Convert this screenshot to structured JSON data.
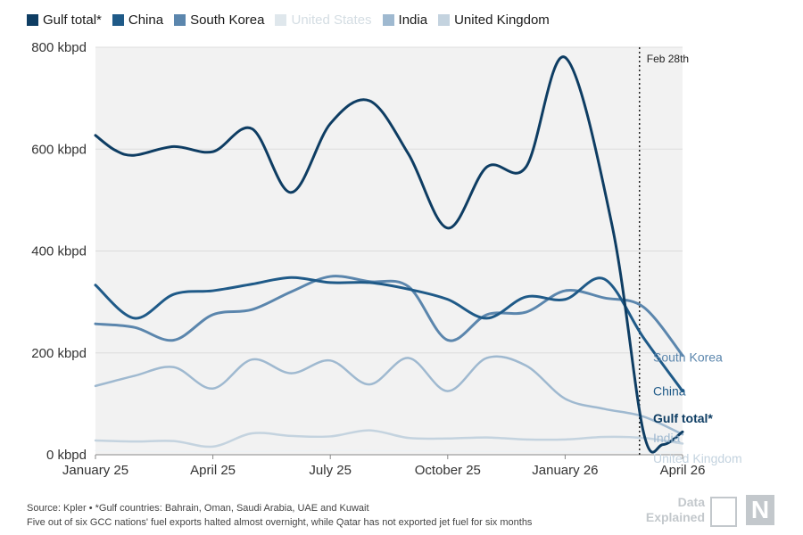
{
  "legend": [
    {
      "label": "Gulf total*",
      "color": "#0e3d63",
      "faded": false
    },
    {
      "label": "China",
      "color": "#1f5a88",
      "faded": false
    },
    {
      "label": "South Korea",
      "color": "#5b86ad",
      "faded": false
    },
    {
      "label": "United States",
      "color": "#dfe7ec",
      "faded": true
    },
    {
      "label": "India",
      "color": "#9fb9d0",
      "faded": false
    },
    {
      "label": "United Kingdom",
      "color": "#c4d3df",
      "faded": false
    }
  ],
  "footer": {
    "source": "Source: Kpler • *Gulf countries: Bahrain, Oman, Saudi Arabia, UAE and Kuwait",
    "note": "Five out of six GCC nations' fuel exports halted almost overnight, while Qatar has not exported jet fuel for six months"
  },
  "brand": {
    "line1": "Data",
    "line2": "Explained",
    "logo_letter": "N"
  },
  "chart_data": {
    "type": "line",
    "x_ticks": [
      "January 25",
      "April 25",
      "July 25",
      "October 25",
      "January 26",
      "April 26"
    ],
    "y_ticks": [
      "0 kbpd",
      "200 kbpd",
      "400 kbpd",
      "600 kbpd",
      "800 kbpd"
    ],
    "ylim": [
      0,
      800
    ],
    "xlim": [
      0,
      15
    ],
    "grid": "horizontal",
    "annotation": {
      "label": "Feb 28th",
      "x": 13.9
    },
    "series": [
      {
        "name": "Gulf total*",
        "color": "#0e3d63",
        "width": 3,
        "points": [
          [
            0,
            627
          ],
          [
            0.5,
            598
          ],
          [
            1,
            588
          ],
          [
            2,
            605
          ],
          [
            3,
            595
          ],
          [
            4,
            640
          ],
          [
            5,
            515
          ],
          [
            6,
            650
          ],
          [
            7,
            695
          ],
          [
            8,
            590
          ],
          [
            9,
            445
          ],
          [
            10,
            565
          ],
          [
            11,
            565
          ],
          [
            12,
            780
          ],
          [
            13.2,
            450
          ],
          [
            14,
            45
          ],
          [
            14.5,
            20
          ],
          [
            15,
            45
          ]
        ]
      },
      {
        "name": "China",
        "color": "#1f5a88",
        "width": 3,
        "points": [
          [
            0,
            333
          ],
          [
            1,
            268
          ],
          [
            2,
            315
          ],
          [
            3,
            322
          ],
          [
            4,
            335
          ],
          [
            5,
            348
          ],
          [
            6,
            338
          ],
          [
            7,
            338
          ],
          [
            8,
            325
          ],
          [
            9,
            305
          ],
          [
            10,
            268
          ],
          [
            11,
            310
          ],
          [
            12,
            305
          ],
          [
            13,
            345
          ],
          [
            14,
            230
          ],
          [
            15,
            125
          ]
        ]
      },
      {
        "name": "South Korea",
        "color": "#5b86ad",
        "width": 3,
        "points": [
          [
            0,
            257
          ],
          [
            1,
            250
          ],
          [
            2,
            225
          ],
          [
            3,
            275
          ],
          [
            4,
            285
          ],
          [
            5,
            320
          ],
          [
            6,
            350
          ],
          [
            7,
            340
          ],
          [
            8,
            330
          ],
          [
            9,
            225
          ],
          [
            10,
            275
          ],
          [
            11,
            280
          ],
          [
            12,
            322
          ],
          [
            13,
            308
          ],
          [
            14,
            290
          ],
          [
            15,
            195
          ]
        ]
      },
      {
        "name": "India",
        "color": "#9fb9d0",
        "width": 2.5,
        "points": [
          [
            0,
            135
          ],
          [
            1,
            155
          ],
          [
            2,
            172
          ],
          [
            3,
            130
          ],
          [
            4,
            187
          ],
          [
            5,
            160
          ],
          [
            6,
            185
          ],
          [
            7,
            138
          ],
          [
            8,
            190
          ],
          [
            9,
            125
          ],
          [
            10,
            190
          ],
          [
            11,
            175
          ],
          [
            12,
            110
          ],
          [
            13,
            90
          ],
          [
            14,
            75
          ],
          [
            15,
            40
          ]
        ]
      },
      {
        "name": "United Kingdom",
        "color": "#c4d3df",
        "width": 2.5,
        "points": [
          [
            0,
            28
          ],
          [
            1,
            26
          ],
          [
            2,
            27
          ],
          [
            3,
            16
          ],
          [
            4,
            42
          ],
          [
            5,
            37
          ],
          [
            6,
            36
          ],
          [
            7,
            48
          ],
          [
            8,
            33
          ],
          [
            9,
            32
          ],
          [
            10,
            34
          ],
          [
            11,
            30
          ],
          [
            12,
            30
          ],
          [
            13,
            35
          ],
          [
            14,
            33
          ],
          [
            15,
            22
          ]
        ]
      },
      {
        "name": "United States",
        "color": "#eef2f5",
        "width": 1.5,
        "points": [
          [
            0,
            8
          ],
          [
            3,
            6
          ],
          [
            6,
            8
          ],
          [
            9,
            7
          ],
          [
            12,
            6
          ],
          [
            15,
            5
          ]
        ]
      }
    ],
    "end_labels": [
      {
        "name": "South Korea",
        "y": 192,
        "color": "#5b86ad"
      },
      {
        "name": "China",
        "y": 125,
        "color": "#1f5a88"
      },
      {
        "name": "Gulf total*",
        "y": 72,
        "color": "#0e3d63"
      },
      {
        "name": "India",
        "y": 33,
        "color": "#9fb9d0"
      },
      {
        "name": "United Kingdom",
        "y": -7,
        "color": "#c4d3df"
      }
    ]
  }
}
